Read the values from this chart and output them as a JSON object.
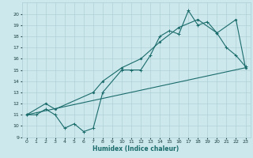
{
  "xlabel": "Humidex (Indice chaleur)",
  "xlim": [
    -0.5,
    23.5
  ],
  "ylim": [
    9,
    21
  ],
  "yticks": [
    9,
    10,
    11,
    12,
    13,
    14,
    15,
    16,
    17,
    18,
    19,
    20
  ],
  "xticks": [
    0,
    1,
    2,
    3,
    4,
    5,
    6,
    7,
    8,
    9,
    10,
    11,
    12,
    13,
    14,
    15,
    16,
    17,
    18,
    19,
    20,
    21,
    22,
    23
  ],
  "bg_color": "#cce8ec",
  "grid_color": "#aacdd4",
  "line_color": "#1a6b6b",
  "line1": {
    "x": [
      0,
      1,
      2,
      3,
      4,
      5,
      6,
      7,
      8,
      10,
      11,
      12,
      13,
      14,
      15,
      16,
      17,
      18,
      19,
      20,
      21,
      22,
      23
    ],
    "y": [
      11,
      11,
      11.5,
      11,
      9.8,
      10.2,
      9.5,
      9.8,
      13,
      15,
      15,
      15,
      16.3,
      18,
      18.5,
      18.2,
      20.3,
      19.0,
      19.3,
      18.3,
      17.0,
      16.3,
      15.3
    ]
  },
  "line2": {
    "x": [
      0,
      2,
      3,
      7,
      8,
      10,
      12,
      14,
      16,
      18,
      20,
      22,
      23
    ],
    "y": [
      11,
      12,
      11.5,
      13,
      14,
      15.2,
      16,
      17.5,
      18.8,
      19.5,
      18.3,
      19.5,
      15.2
    ]
  },
  "line3": {
    "x": [
      0,
      23
    ],
    "y": [
      11,
      15.2
    ]
  }
}
